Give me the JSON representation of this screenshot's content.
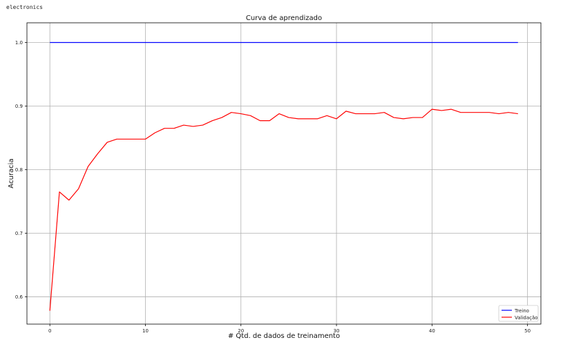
{
  "output": {
    "stdout_text": "electronics"
  },
  "chart_data": {
    "type": "line",
    "title": "Curva de aprendizado",
    "xlabel": "# Qtd. de dados de treinamento",
    "ylabel": "Acuracia",
    "xlim": [
      -2.4,
      51.4
    ],
    "ylim": [
      0.557,
      1.031
    ],
    "xticks": [
      0,
      10,
      20,
      30,
      40,
      50
    ],
    "yticks": [
      0.6,
      0.7,
      0.8,
      0.9,
      1.0
    ],
    "grid": true,
    "legend_position": "bottom-right",
    "x": [
      0,
      1,
      2,
      3,
      4,
      5,
      6,
      7,
      8,
      9,
      10,
      11,
      12,
      13,
      14,
      15,
      16,
      17,
      18,
      19,
      20,
      21,
      22,
      23,
      24,
      25,
      26,
      27,
      28,
      29,
      30,
      31,
      32,
      33,
      34,
      35,
      36,
      37,
      38,
      39,
      40,
      41,
      42,
      43,
      44,
      45,
      46,
      47,
      48,
      49
    ],
    "series": [
      {
        "name": "Treino",
        "color": "#0000ff",
        "values": [
          1.0,
          1.0,
          1.0,
          1.0,
          1.0,
          1.0,
          1.0,
          1.0,
          1.0,
          1.0,
          1.0,
          1.0,
          1.0,
          1.0,
          1.0,
          1.0,
          1.0,
          1.0,
          1.0,
          1.0,
          1.0,
          1.0,
          1.0,
          1.0,
          1.0,
          1.0,
          1.0,
          1.0,
          1.0,
          1.0,
          1.0,
          1.0,
          1.0,
          1.0,
          1.0,
          1.0,
          1.0,
          1.0,
          1.0,
          1.0,
          1.0,
          1.0,
          1.0,
          1.0,
          1.0,
          1.0,
          1.0,
          1.0,
          1.0,
          1.0
        ]
      },
      {
        "name": "Validação",
        "color": "#ff0000",
        "values": [
          0.578,
          0.765,
          0.752,
          0.77,
          0.805,
          0.825,
          0.843,
          0.848,
          0.848,
          0.848,
          0.848,
          0.858,
          0.865,
          0.865,
          0.87,
          0.868,
          0.87,
          0.877,
          0.882,
          0.89,
          0.888,
          0.885,
          0.877,
          0.877,
          0.888,
          0.882,
          0.88,
          0.88,
          0.88,
          0.885,
          0.88,
          0.892,
          0.888,
          0.888,
          0.888,
          0.89,
          0.882,
          0.88,
          0.882,
          0.882,
          0.895,
          0.893,
          0.895,
          0.89,
          0.89,
          0.89,
          0.89,
          0.888,
          0.89,
          0.888
        ]
      }
    ]
  }
}
